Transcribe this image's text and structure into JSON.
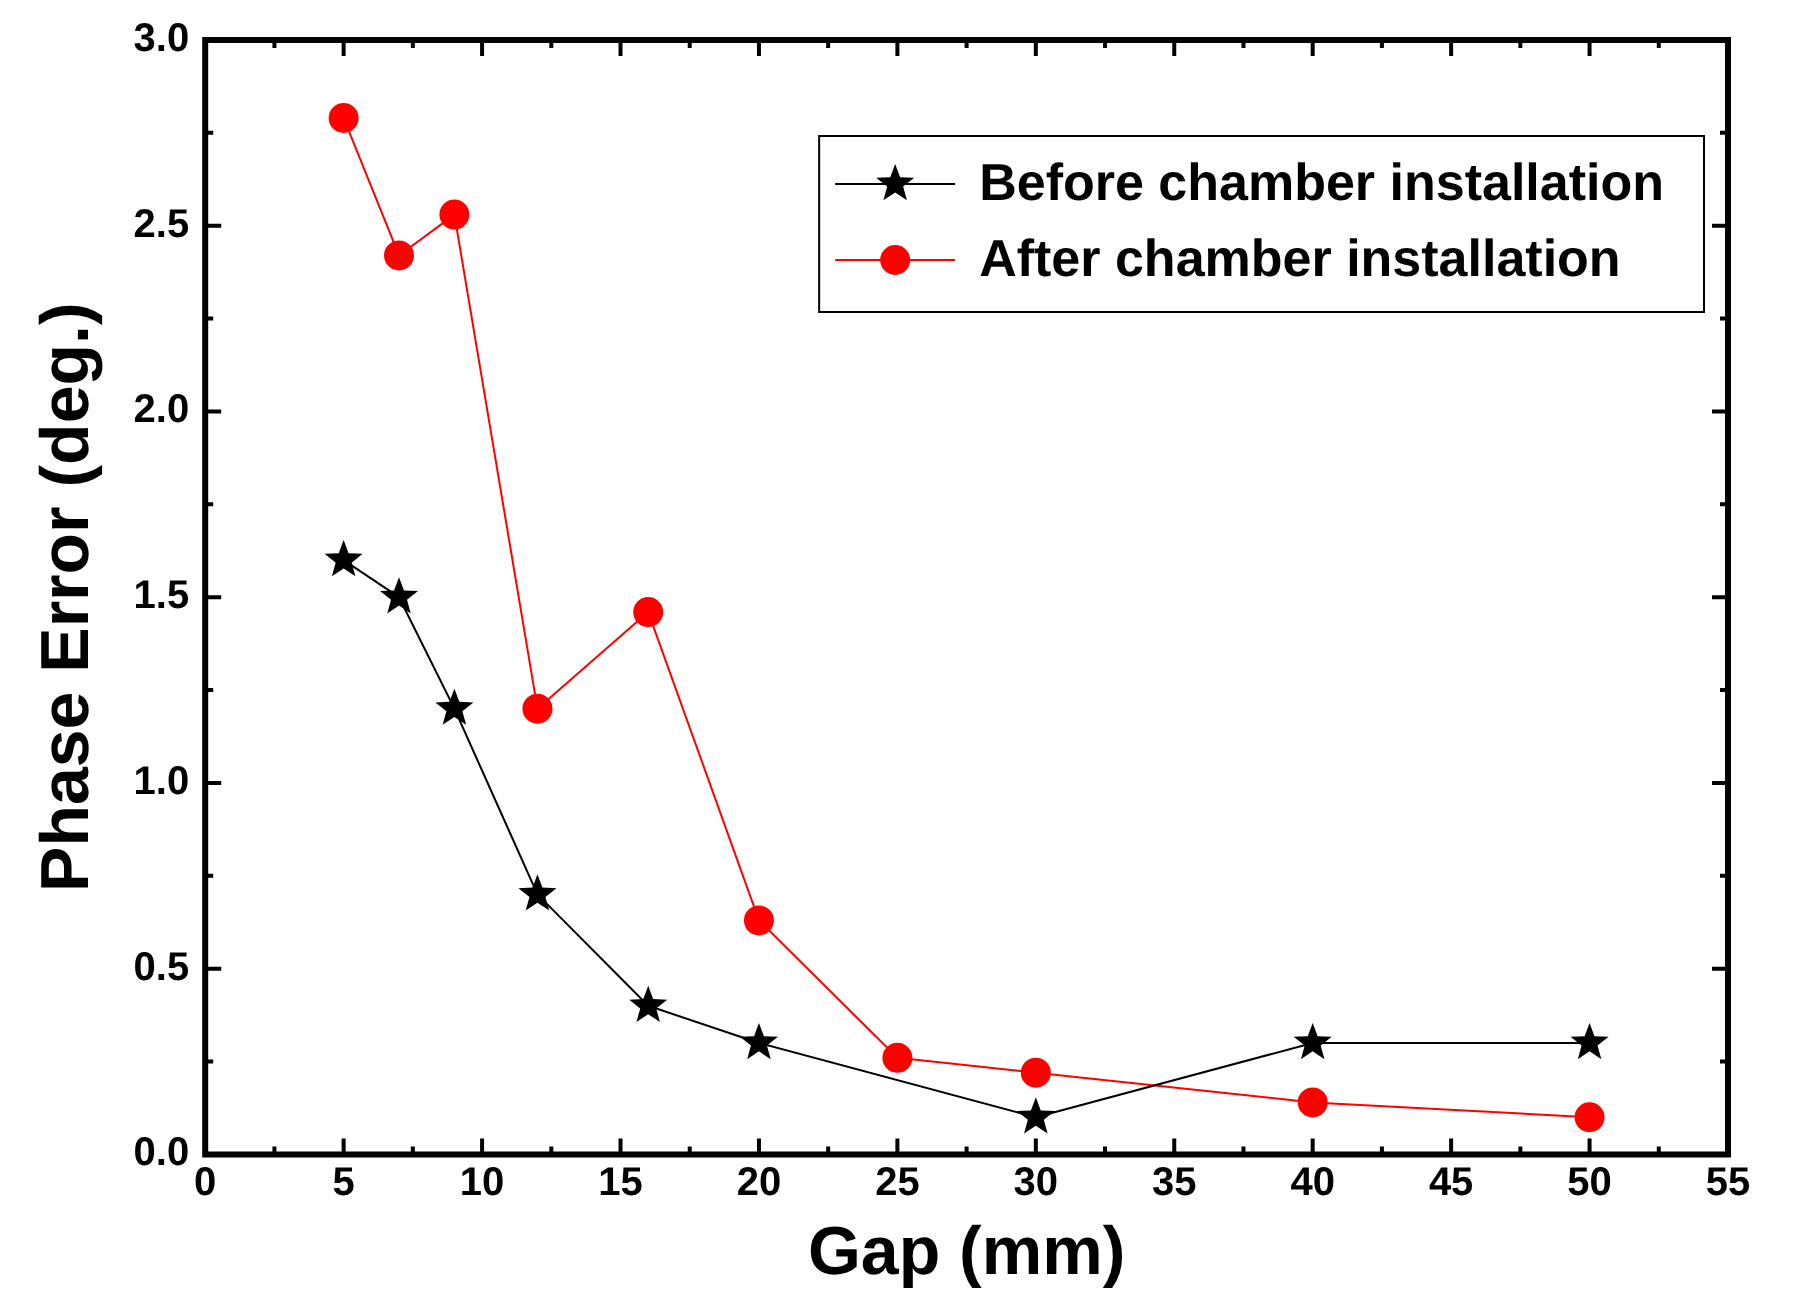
{
  "chart_data": {
    "type": "line",
    "xlabel": "Gap (mm)",
    "ylabel": "Phase Error (deg.)",
    "xlim": [
      0,
      55
    ],
    "xticks": [
      0,
      5,
      10,
      15,
      20,
      25,
      30,
      35,
      40,
      45,
      50,
      55
    ],
    "ylim": [
      0,
      3
    ],
    "yticks": [
      {
        "value": 0,
        "label": "0.0"
      },
      0.5,
      {
        "value": 1,
        "label": "1.0"
      },
      1.5,
      {
        "value": 2,
        "label": "2.0"
      },
      2.5,
      {
        "value": 3,
        "label": "3.0"
      }
    ],
    "grid": false,
    "legend": "top right",
    "series": [
      {
        "name": "Before chamber installation",
        "color": "#000000",
        "marker": "star",
        "x": [
          5,
          7,
          9,
          12,
          16,
          20,
          30,
          40,
          50
        ],
        "values": [
          1.6,
          1.5,
          1.2,
          0.7,
          0.4,
          0.3,
          0.1,
          0.3,
          0.3
        ]
      },
      {
        "name": "After chamber installation",
        "color": "#ff0000",
        "marker": "circle",
        "x": [
          5,
          7,
          9,
          12,
          16,
          20,
          25,
          30,
          40,
          50
        ],
        "values": [
          2.79,
          2.42,
          2.53,
          1.2,
          1.46,
          0.63,
          0.26,
          0.22,
          0.14,
          0.1
        ]
      }
    ]
  }
}
